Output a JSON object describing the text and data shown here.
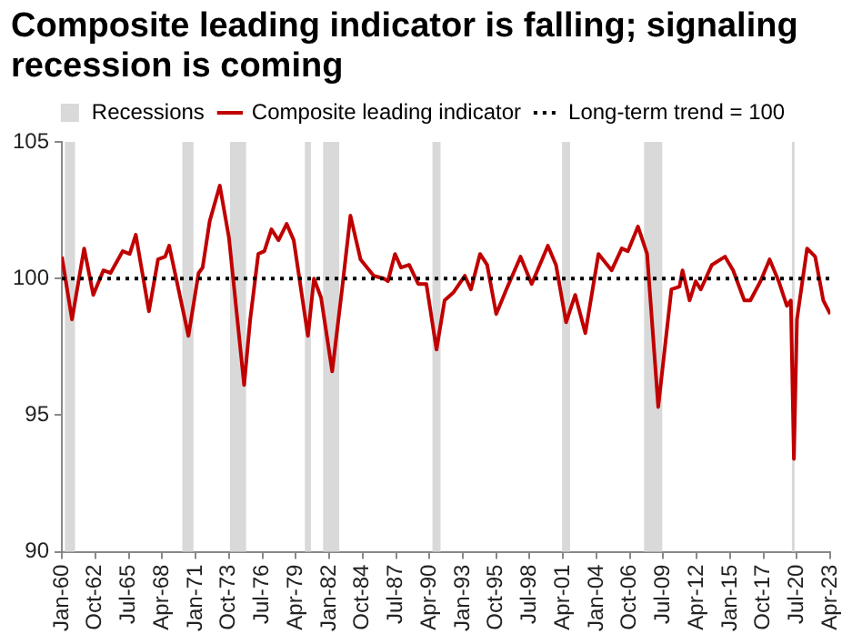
{
  "chart_data": {
    "type": "line",
    "title": "Composite leading indicator is falling; signaling recession is coming",
    "x": [
      "1960-01",
      "1960-11",
      "1961-11",
      "1962-08",
      "1963-06",
      "1964-01",
      "1965-01",
      "1965-08",
      "1966-02",
      "1967-03",
      "1967-12",
      "1968-07",
      "1968-11",
      "1970-06",
      "1971-04",
      "1971-08",
      "1972-03",
      "1973-01",
      "1973-10",
      "1975-01",
      "1975-07",
      "1976-03",
      "1976-09",
      "1977-04",
      "1977-11",
      "1978-07",
      "1979-02",
      "1980-04",
      "1980-10",
      "1981-05",
      "1982-04",
      "1983-02",
      "1983-10",
      "1984-08",
      "1985-09",
      "1986-07",
      "1986-11",
      "1987-06",
      "1987-12",
      "1988-08",
      "1989-05",
      "1990-01",
      "1990-11",
      "1991-07",
      "1992-04",
      "1993-03",
      "1993-09",
      "1994-06",
      "1995-01",
      "1995-10",
      "1996-08",
      "1997-10",
      "1998-09",
      "2000-01",
      "2000-09",
      "2001-07",
      "2002-04",
      "2003-02",
      "2004-03",
      "2005-04",
      "2006-02",
      "2006-08",
      "2007-06",
      "2008-03",
      "2009-02",
      "2010-03",
      "2010-11",
      "2011-02",
      "2011-09",
      "2012-03",
      "2012-08",
      "2013-07",
      "2014-08",
      "2015-04",
      "2016-03",
      "2016-09",
      "2017-07",
      "2018-04",
      "2019-01",
      "2019-09",
      "2020-01",
      "2020-04",
      "2020-07",
      "2021-05",
      "2022-01",
      "2022-09",
      "2023-04"
    ],
    "series": [
      {
        "name": "Composite leading indicator",
        "color": "#c00000",
        "values": [
          100.8,
          98.5,
          101.1,
          99.4,
          100.3,
          100.2,
          101.0,
          100.9,
          101.6,
          98.8,
          100.7,
          100.8,
          101.2,
          97.9,
          100.2,
          100.4,
          102.1,
          103.4,
          101.5,
          96.1,
          98.5,
          100.9,
          101.0,
          101.8,
          101.4,
          102.0,
          101.4,
          97.9,
          100.0,
          99.3,
          96.6,
          99.7,
          102.3,
          100.7,
          100.1,
          100.0,
          99.9,
          100.9,
          100.4,
          100.5,
          99.8,
          99.8,
          97.4,
          99.2,
          99.5,
          100.1,
          99.6,
          100.9,
          100.5,
          98.7,
          99.6,
          100.8,
          99.8,
          101.2,
          100.5,
          98.4,
          99.4,
          98.0,
          100.9,
          100.3,
          101.1,
          101.0,
          101.9,
          100.9,
          95.3,
          99.6,
          99.7,
          100.3,
          99.2,
          99.9,
          99.6,
          100.5,
          100.8,
          100.3,
          99.2,
          99.2,
          99.9,
          100.7,
          99.9,
          99.0,
          99.2,
          93.4,
          98.5,
          101.1,
          100.8,
          99.2,
          98.7
        ]
      }
    ],
    "xlim": [
      "1960-01",
      "2023-04"
    ],
    "xticks": [
      {
        "value": "1960-01",
        "label": "Jan-60"
      },
      {
        "value": "1962-10",
        "label": "Oct-62"
      },
      {
        "value": "1965-07",
        "label": "Jul-65"
      },
      {
        "value": "1968-04",
        "label": "Apr-68"
      },
      {
        "value": "1971-01",
        "label": "Jan-71"
      },
      {
        "value": "1973-10",
        "label": "Oct-73"
      },
      {
        "value": "1976-07",
        "label": "Jul-76"
      },
      {
        "value": "1979-04",
        "label": "Apr-79"
      },
      {
        "value": "1982-01",
        "label": "Jan-82"
      },
      {
        "value": "1984-10",
        "label": "Oct-84"
      },
      {
        "value": "1987-07",
        "label": "Jul-87"
      },
      {
        "value": "1990-04",
        "label": "Apr-90"
      },
      {
        "value": "1993-01",
        "label": "Jan-93"
      },
      {
        "value": "1995-10",
        "label": "Oct-95"
      },
      {
        "value": "1998-07",
        "label": "Jul-98"
      },
      {
        "value": "2001-04",
        "label": "Apr-01"
      },
      {
        "value": "2004-01",
        "label": "Jan-04"
      },
      {
        "value": "2006-10",
        "label": "Oct-06"
      },
      {
        "value": "2009-07",
        "label": "Jul-09"
      },
      {
        "value": "2012-04",
        "label": "Apr-12"
      },
      {
        "value": "2015-01",
        "label": "Jan-15"
      },
      {
        "value": "2017-10",
        "label": "Oct-17"
      },
      {
        "value": "2020-07",
        "label": "Jul-20"
      },
      {
        "value": "2023-04",
        "label": "Apr-23"
      }
    ],
    "ylim": [
      90,
      105
    ],
    "yticks": [
      90,
      95,
      100,
      105
    ],
    "bands": [
      {
        "axis": "x",
        "from": "1960-04",
        "to": "1961-02",
        "label": "Recessions",
        "color": "#d9d9d9"
      },
      {
        "axis": "x",
        "from": "1969-12",
        "to": "1970-11",
        "color": "#d9d9d9"
      },
      {
        "axis": "x",
        "from": "1973-11",
        "to": "1975-03",
        "color": "#d9d9d9"
      },
      {
        "axis": "x",
        "from": "1980-01",
        "to": "1980-07",
        "color": "#d9d9d9"
      },
      {
        "axis": "x",
        "from": "1981-07",
        "to": "1982-11",
        "color": "#d9d9d9"
      },
      {
        "axis": "x",
        "from": "1990-07",
        "to": "1991-03",
        "color": "#d9d9d9"
      },
      {
        "axis": "x",
        "from": "2001-03",
        "to": "2001-11",
        "color": "#d9d9d9"
      },
      {
        "axis": "x",
        "from": "2007-12",
        "to": "2009-06",
        "color": "#d9d9d9"
      },
      {
        "axis": "x",
        "from": "2020-02",
        "to": "2020-04",
        "color": "#d9d9d9"
      }
    ],
    "ref_lines": [
      {
        "axis": "y",
        "value": 100,
        "label": "Long-term trend = 100",
        "color": "#000000",
        "line_style": "dotted"
      }
    ],
    "legend": "top",
    "grid": false,
    "marker": "none",
    "line_style": "solid"
  }
}
